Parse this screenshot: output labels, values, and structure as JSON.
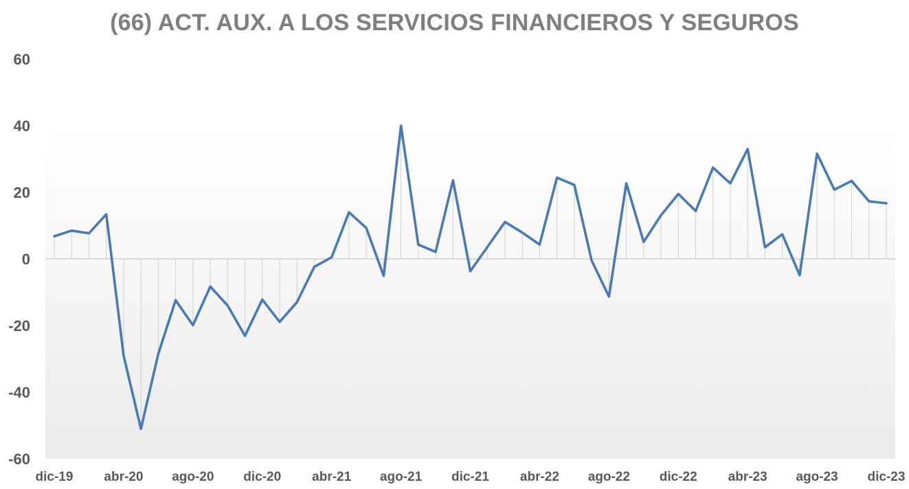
{
  "chart_data": {
    "type": "line",
    "title": "(66) ACT. AUX. A LOS SERVICIOS FINANCIEROS Y SEGUROS",
    "xlabel": "",
    "ylabel": "",
    "ylim": [
      -60,
      60
    ],
    "yticks": [
      "60",
      "40",
      "20",
      "0",
      "-20",
      "-40",
      "-60"
    ],
    "yticks_values": [
      60,
      40,
      20,
      0,
      -20,
      -40,
      -60
    ],
    "xtick_labels": [
      "dic-19",
      "abr-20",
      "ago-20",
      "dic-20",
      "abr-21",
      "ago-21",
      "dic-21",
      "abr-22",
      "ago-22",
      "dic-22",
      "abr-23",
      "ago-23",
      "dic-23"
    ],
    "xtick_every": 4,
    "drop_lines": true,
    "line_color": "#4a7ab5",
    "series": [
      {
        "values": [
          6.8,
          8.5,
          7.7,
          13.4,
          -29.0,
          -51.0,
          -28.5,
          -12.4,
          -19.9,
          -8.3,
          -14.0,
          -23.1,
          -12.2,
          -18.9,
          -13.0,
          -2.4,
          0.5,
          14.0,
          9.3,
          -5.1,
          40.0,
          4.3,
          2.1,
          23.6,
          -3.7,
          3.7,
          11.1,
          7.9,
          4.3,
          24.4,
          22.2,
          -0.5,
          -11.3,
          22.7,
          5.1,
          13.1,
          19.5,
          14.4,
          27.4,
          22.7,
          33.0,
          3.5,
          7.4,
          -4.9,
          31.6,
          20.8,
          23.4,
          17.3,
          16.7
        ]
      }
    ]
  }
}
